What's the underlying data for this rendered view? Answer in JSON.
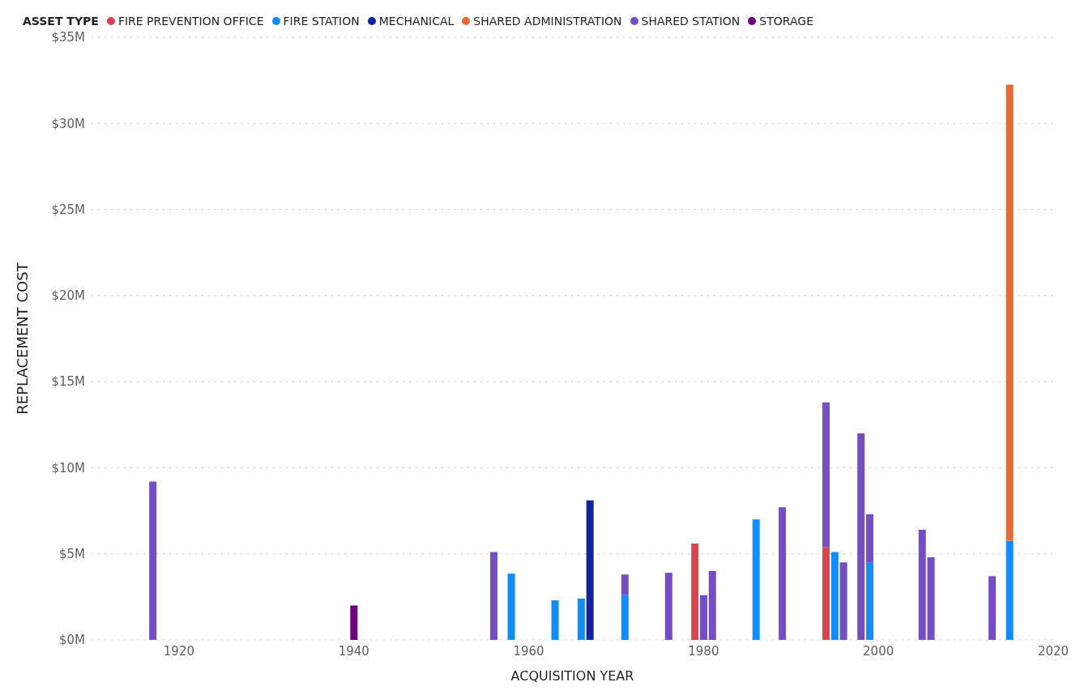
{
  "chart_data": {
    "type": "bar",
    "stacked": true,
    "legend_title": "ASSET TYPE",
    "xlabel": "ACQUISITION YEAR",
    "ylabel": "REPLACEMENT COST",
    "x": [
      1917,
      1940,
      1956,
      1958,
      1963,
      1966,
      1967,
      1971,
      1976,
      1979,
      1980,
      1981,
      1986,
      1989,
      1994,
      1995,
      1996,
      1998,
      1999,
      2005,
      2006,
      2013,
      2015
    ],
    "series": [
      {
        "name": "FIRE PREVENTION OFFICE",
        "color": "#d64550",
        "values": [
          null,
          null,
          null,
          null,
          null,
          null,
          null,
          null,
          null,
          5.6,
          null,
          null,
          null,
          null,
          5.4,
          null,
          null,
          null,
          null,
          null,
          null,
          null,
          null
        ]
      },
      {
        "name": "FIRE STATION",
        "color": "#118dff",
        "values": [
          null,
          null,
          null,
          3.85,
          2.3,
          2.4,
          null,
          2.6,
          null,
          null,
          null,
          null,
          7.0,
          null,
          null,
          5.1,
          null,
          null,
          4.5,
          null,
          null,
          null,
          5.75
        ]
      },
      {
        "name": "MECHANICAL",
        "color": "#12239e",
        "values": [
          null,
          null,
          null,
          null,
          null,
          null,
          8.1,
          null,
          null,
          null,
          null,
          null,
          null,
          null,
          null,
          null,
          null,
          null,
          null,
          null,
          null,
          null,
          null
        ]
      },
      {
        "name": "SHARED ADMINISTRATION",
        "color": "#e66c37",
        "values": [
          null,
          null,
          null,
          null,
          null,
          null,
          null,
          null,
          null,
          null,
          null,
          null,
          null,
          null,
          null,
          null,
          null,
          null,
          null,
          null,
          null,
          null,
          26.5
        ]
      },
      {
        "name": "SHARED STATION",
        "color": "#744ec2",
        "values": [
          9.2,
          null,
          5.1,
          null,
          null,
          null,
          null,
          1.2,
          3.9,
          null,
          2.6,
          4.0,
          null,
          7.7,
          8.4,
          null,
          4.5,
          12.0,
          2.8,
          6.4,
          4.8,
          3.7,
          null
        ]
      },
      {
        "name": "STORAGE",
        "color": "#6b007b",
        "values": [
          null,
          2.0,
          null,
          null,
          null,
          null,
          null,
          null,
          null,
          null,
          null,
          null,
          null,
          null,
          null,
          null,
          null,
          null,
          null,
          null,
          null,
          null,
          null
        ]
      }
    ],
    "xlim": [
      1910,
      2020
    ],
    "xticks": [
      1920,
      1940,
      1960,
      1980,
      2000,
      2020
    ],
    "ylim": [
      0,
      35
    ],
    "yticks": [
      {
        "value": 0,
        "label": "$0M"
      },
      {
        "value": 5,
        "label": "$5M"
      },
      {
        "value": 10,
        "label": "$10M"
      },
      {
        "value": 15,
        "label": "$15M"
      },
      {
        "value": 20,
        "label": "$20M"
      },
      {
        "value": 25,
        "label": "$25M"
      },
      {
        "value": 30,
        "label": "$30M"
      },
      {
        "value": 35,
        "label": "$35M"
      }
    ],
    "grid": "y",
    "legend": "top left"
  }
}
